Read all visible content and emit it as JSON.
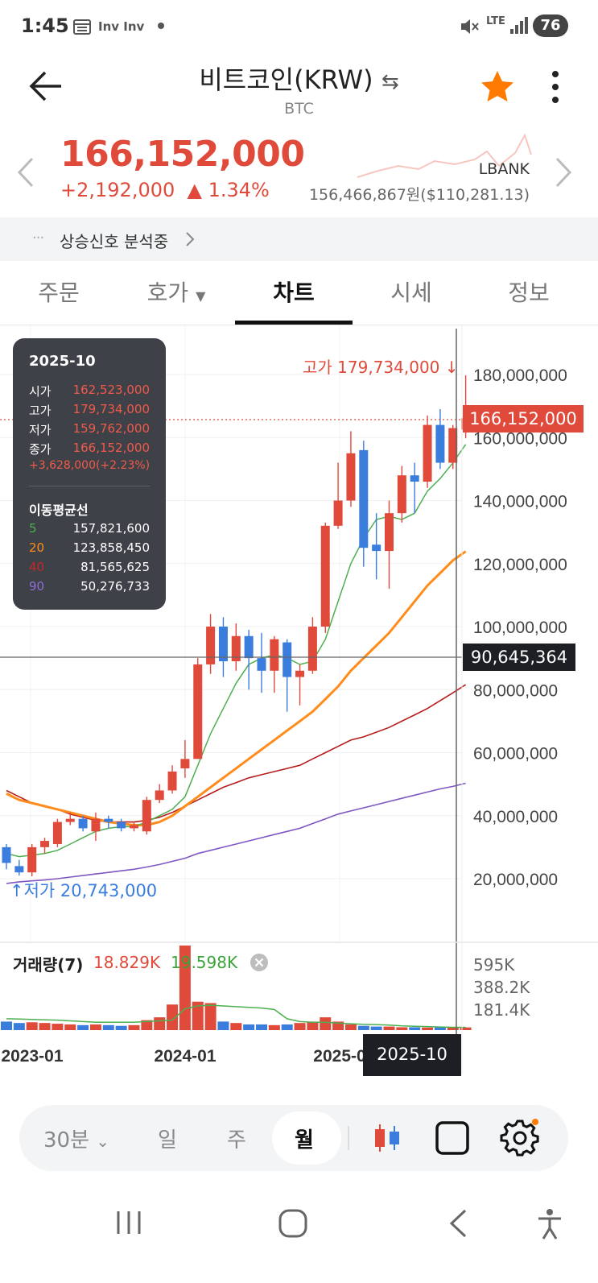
{
  "status_bar": {
    "time": "1:45",
    "notif": "Inv Inv",
    "network": "LTE",
    "battery": "76"
  },
  "header": {
    "title": "비트코인(KRW)",
    "subtitle": "BTC",
    "back_icon": "arrow-left-icon",
    "swap_icon": "swap-icon",
    "favorite_icon": "star-icon",
    "menu_icon": "more-vertical-icon",
    "accent": "#ff7a00"
  },
  "price": {
    "current": "166,152,000",
    "change": "+2,192,000",
    "change_rate": "▲ 1.34%",
    "exchange": "LBANK",
    "exchange_price": "156,466,867원($110,281.13)",
    "up_color": "#e04a3b"
  },
  "signal": {
    "dots": "···",
    "text": "상승신호 분석중"
  },
  "tabs": [
    {
      "label": "주문"
    },
    {
      "label": "호가"
    },
    {
      "label": "차트"
    },
    {
      "label": "시세"
    },
    {
      "label": "정보"
    }
  ],
  "info_box": {
    "date": "2025-10",
    "open_label": "시가",
    "open": "162,523,000",
    "high_label": "고가",
    "high": "179,734,000",
    "low_label": "저가",
    "low": "159,762,000",
    "close_label": "종가",
    "close": "166,152,000",
    "change": "+3,628,000(+2.23%)",
    "ma_title": "이동평균선",
    "ma": [
      {
        "period": "5",
        "value": "157,821,600",
        "color": "#4caf50"
      },
      {
        "period": "20",
        "value": "123,858,450",
        "color": "#ff8c1a"
      },
      {
        "period": "40",
        "value": "81,565,625",
        "color": "#b71c1c"
      },
      {
        "period": "90",
        "value": "50,276,733",
        "color": "#7e57c2"
      }
    ]
  },
  "chart_annotations": {
    "high_marker": "고가 179,734,000",
    "low_marker": "저가 20,743,000",
    "current_price_tag": "166,152,000",
    "crosshair_price_tag": "90,645,364",
    "crosshair_date_tag": "2025-10"
  },
  "volume": {
    "title": "거래량(7)",
    "value_red": "18.829K",
    "value_green": "19.598K",
    "y_ticks": [
      "595K",
      "388.2K",
      "181.4K"
    ]
  },
  "controls": {
    "interval_30m": "30분",
    "day": "일",
    "week": "주",
    "month": "월"
  },
  "chart_data": {
    "type": "candlestick",
    "period": "monthly",
    "y_ticks": [
      "180,000,000",
      "160,000,000",
      "140,000,000",
      "120,000,000",
      "100,000,000",
      "80,000,000",
      "60,000,000",
      "40,000,000",
      "20,000,000"
    ],
    "x_ticks": [
      "2023-01",
      "2024-01",
      "2025-0"
    ],
    "ylim": [
      0,
      190000000
    ],
    "candles": [
      {
        "o": 30000000,
        "c": 25000000,
        "h": 31000000,
        "l": 23000000
      },
      {
        "o": 24000000,
        "c": 22000000,
        "h": 26000000,
        "l": 21000000
      },
      {
        "o": 22000000,
        "c": 30000000,
        "h": 31000000,
        "l": 20743000
      },
      {
        "o": 30000000,
        "c": 32000000,
        "h": 33000000,
        "l": 28000000
      },
      {
        "o": 31000000,
        "c": 38000000,
        "h": 39000000,
        "l": 30000000
      },
      {
        "o": 38000000,
        "c": 39000000,
        "h": 41000000,
        "l": 37000000
      },
      {
        "o": 39000000,
        "c": 36000000,
        "h": 40000000,
        "l": 35000000
      },
      {
        "o": 35000000,
        "c": 39000000,
        "h": 41000000,
        "l": 32000000
      },
      {
        "o": 39000000,
        "c": 38000000,
        "h": 40000000,
        "l": 36000000
      },
      {
        "o": 38000000,
        "c": 36000000,
        "h": 39000000,
        "l": 35000000
      },
      {
        "o": 36000000,
        "c": 37000000,
        "h": 38000000,
        "l": 35000000
      },
      {
        "o": 35000000,
        "c": 45000000,
        "h": 46000000,
        "l": 34000000
      },
      {
        "o": 45000000,
        "c": 48000000,
        "h": 50000000,
        "l": 44000000
      },
      {
        "o": 48000000,
        "c": 54000000,
        "h": 56000000,
        "l": 47000000
      },
      {
        "o": 55000000,
        "c": 58000000,
        "h": 64000000,
        "l": 52000000
      },
      {
        "o": 58000000,
        "c": 88000000,
        "h": 90000000,
        "l": 58000000
      },
      {
        "o": 88000000,
        "c": 100000000,
        "h": 104000000,
        "l": 85000000
      },
      {
        "o": 100000000,
        "c": 89000000,
        "h": 103000000,
        "l": 84000000
      },
      {
        "o": 89000000,
        "c": 97000000,
        "h": 101000000,
        "l": 86000000
      },
      {
        "o": 97000000,
        "c": 90000000,
        "h": 99000000,
        "l": 80000000
      },
      {
        "o": 90000000,
        "c": 86000000,
        "h": 98000000,
        "l": 79000000
      },
      {
        "o": 86000000,
        "c": 96000000,
        "h": 97000000,
        "l": 79000000
      },
      {
        "o": 95000000,
        "c": 84000000,
        "h": 96000000,
        "l": 73000000
      },
      {
        "o": 84000000,
        "c": 86000000,
        "h": 88000000,
        "l": 75000000
      },
      {
        "o": 86000000,
        "c": 100000000,
        "h": 103000000,
        "l": 85000000
      },
      {
        "o": 100000000,
        "c": 132000000,
        "h": 133000000,
        "l": 98000000
      },
      {
        "o": 132000000,
        "c": 140000000,
        "h": 152000000,
        "l": 131000000
      },
      {
        "o": 140000000,
        "c": 155000000,
        "h": 162000000,
        "l": 138000000
      },
      {
        "o": 156000000,
        "c": 125000000,
        "h": 159000000,
        "l": 119000000
      },
      {
        "o": 126000000,
        "c": 124000000,
        "h": 136000000,
        "l": 115000000
      },
      {
        "o": 124000000,
        "c": 136000000,
        "h": 140000000,
        "l": 112000000
      },
      {
        "o": 136000000,
        "c": 148000000,
        "h": 151000000,
        "l": 133000000
      },
      {
        "o": 148000000,
        "c": 146000000,
        "h": 152000000,
        "l": 136000000
      },
      {
        "o": 146000000,
        "c": 164000000,
        "h": 167000000,
        "l": 144000000
      },
      {
        "o": 164000000,
        "c": 152000000,
        "h": 169000000,
        "l": 150000000
      },
      {
        "o": 152000000,
        "c": 163000000,
        "h": 164000000,
        "l": 150000000
      },
      {
        "o": 162523000,
        "c": 166152000,
        "h": 179734000,
        "l": 159762000
      }
    ],
    "ma5": [
      28000000,
      27000000,
      27500000,
      28000000,
      29000000,
      31000000,
      33000000,
      35000000,
      36000000,
      36500000,
      36500000,
      38000000,
      40000000,
      42000000,
      46000000,
      56000000,
      66000000,
      74000000,
      82000000,
      88000000,
      90000000,
      91000000,
      90000000,
      88000000,
      89000000,
      96000000,
      108000000,
      120000000,
      128000000,
      134000000,
      135000000,
      134000000,
      136000000,
      143000000,
      147000000,
      152000000,
      157821600
    ],
    "ma20": [
      47000000,
      45000000,
      44000000,
      43000000,
      42000000,
      41000000,
      40000000,
      39000000,
      38000000,
      37500000,
      37000000,
      37000000,
      38000000,
      40000000,
      43000000,
      46000000,
      49000000,
      52000000,
      55000000,
      58000000,
      61000000,
      64000000,
      67000000,
      70000000,
      73000000,
      77000000,
      81000000,
      86000000,
      90000000,
      94000000,
      98000000,
      103000000,
      108000000,
      113000000,
      117000000,
      121000000,
      123858450
    ],
    "ma40": [
      48000000,
      46000000,
      44000000,
      43000000,
      42000000,
      40500000,
      39500000,
      38500000,
      38000000,
      38000000,
      38000000,
      38500000,
      39500000,
      41000000,
      43000000,
      45000000,
      47000000,
      49000000,
      50500000,
      52000000,
      53000000,
      54000000,
      55000000,
      56000000,
      58000000,
      60000000,
      62000000,
      64000000,
      65000000,
      66500000,
      68000000,
      70000000,
      72000000,
      74000000,
      76500000,
      79000000,
      81565625
    ],
    "ma90": [
      18500000,
      19000000,
      19300000,
      19600000,
      20000000,
      20500000,
      21000000,
      21500000,
      22000000,
      22500000,
      23000000,
      23700000,
      24500000,
      25500000,
      26500000,
      28000000,
      29000000,
      30000000,
      31000000,
      32000000,
      33000000,
      34000000,
      35000000,
      36000000,
      37500000,
      39000000,
      40500000,
      41500000,
      42500000,
      43500000,
      44500000,
      45500000,
      46500000,
      47500000,
      48500000,
      49300000,
      50276733
    ],
    "volume": [
      60000,
      50000,
      55000,
      50000,
      45000,
      40000,
      35000,
      40000,
      35000,
      30000,
      35000,
      70000,
      90000,
      180000,
      595000,
      200000,
      190000,
      60000,
      50000,
      40000,
      40000,
      35000,
      40000,
      50000,
      60000,
      90000,
      60000,
      40000,
      30000,
      25000,
      25000,
      20000,
      20000,
      18000,
      19000,
      19000,
      18829
    ],
    "volume_ma": [
      80000,
      78000,
      75000,
      72000,
      70000,
      65000,
      60000,
      55000,
      55000,
      55000,
      55000,
      60000,
      65000,
      70000,
      150000,
      170000,
      175000,
      170000,
      165000,
      160000,
      155000,
      145000,
      80000,
      60000,
      55000,
      55000,
      50000,
      45000,
      40000,
      38000,
      35000,
      30000,
      27000,
      25000,
      22000,
      20000,
      19598
    ]
  }
}
